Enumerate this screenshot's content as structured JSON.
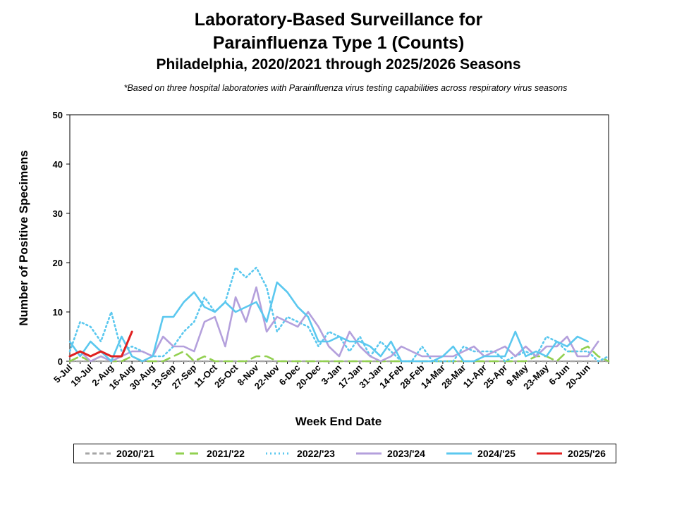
{
  "chart_data": {
    "type": "line",
    "title_line1": "Laboratory-Based Surveillance for",
    "title_line2": "Parainfluenza Type 1 (Counts)",
    "subtitle": "Philadelphia, 2020/2021 through 2025/2026 Seasons",
    "note": "*Based on three hospital laboratories with Parainfluenza virus testing capabilities across respiratory virus seasons",
    "xlabel": "Week End Date",
    "ylabel": "Number of Positive Specimens",
    "ylim": [
      0,
      50
    ],
    "yticks": [
      0,
      10,
      20,
      30,
      40,
      50
    ],
    "grid": false,
    "legend_position": "bottom",
    "x_tick_labels": [
      "5-Jul",
      "19-Jul",
      "2-Aug",
      "16-Aug",
      "30-Aug",
      "13-Sep",
      "27-Sep",
      "11-Oct",
      "25-Oct",
      "8-Nov",
      "22-Nov",
      "6-Dec",
      "20-Dec",
      "3-Jan",
      "17-Jan",
      "31-Jan",
      "14-Feb",
      "28-Feb",
      "14-Mar",
      "28-Mar",
      "11-Apr",
      "25-Apr",
      "9-May",
      "23-May",
      "6-Jun",
      "20-Jun"
    ],
    "series": [
      {
        "name": "2020/'21",
        "color": "#a6a6a6",
        "dash": "dash",
        "values": [
          0,
          0,
          0,
          0,
          0,
          0,
          0,
          0,
          0,
          0,
          0,
          0,
          0,
          0,
          0,
          0,
          0,
          0,
          0,
          0,
          0,
          0,
          0,
          0,
          0,
          0,
          0,
          0,
          0,
          0,
          0,
          0,
          0,
          0,
          0,
          0,
          0,
          0,
          0,
          0,
          0,
          0,
          0,
          0,
          0,
          0,
          0,
          0,
          0,
          0,
          0,
          0,
          0
        ]
      },
      {
        "name": "2021/'22",
        "color": "#92d050",
        "dash": "longdash",
        "values": [
          0,
          1,
          0,
          1,
          0,
          0,
          1,
          0,
          0,
          0,
          1,
          2,
          0,
          1,
          0,
          0,
          0,
          0,
          1,
          1,
          0,
          0,
          0,
          0,
          0,
          0,
          0,
          0,
          0,
          0,
          0,
          0,
          0,
          0,
          0,
          0,
          0,
          0,
          0,
          0,
          0,
          0,
          0,
          0,
          0,
          1,
          1,
          0,
          2,
          2,
          3,
          1,
          0
        ]
      },
      {
        "name": "2022/'23",
        "color": "#5bc8ef",
        "dash": "dot",
        "values": [
          2,
          8,
          7,
          4,
          10,
          2,
          3,
          2,
          1,
          1,
          3,
          6,
          8,
          13,
          10,
          12,
          19,
          17,
          19,
          15,
          6,
          9,
          8,
          7,
          3,
          6,
          5,
          2,
          5,
          1,
          4,
          2,
          0,
          0,
          3,
          0,
          0,
          0,
          3,
          2,
          2,
          2,
          0,
          1,
          2,
          1,
          5,
          4,
          2,
          2,
          2,
          0,
          1
        ]
      },
      {
        "name": "2023/'24",
        "color": "#b4a0dc",
        "dash": "solid",
        "values": [
          1,
          2,
          0,
          1,
          0,
          1,
          2,
          2,
          1,
          5,
          3,
          3,
          2,
          8,
          9,
          3,
          13,
          8,
          15,
          6,
          9,
          8,
          7,
          10,
          7,
          3,
          1,
          6,
          3,
          1,
          0,
          1,
          3,
          2,
          1,
          1,
          1,
          1,
          2,
          3,
          1,
          2,
          3,
          1,
          3,
          1,
          3,
          3,
          5,
          1,
          1,
          4,
          null
        ]
      },
      {
        "name": "2024/'25",
        "color": "#5bc8ef",
        "dash": "solid",
        "values": [
          4,
          1,
          4,
          2,
          0,
          5,
          1,
          0,
          1,
          9,
          9,
          12,
          14,
          11,
          10,
          12,
          10,
          11,
          12,
          8,
          16,
          14,
          11,
          9,
          4,
          4,
          5,
          4,
          4,
          3,
          1,
          4,
          0,
          0,
          0,
          0,
          1,
          3,
          0,
          0,
          1,
          1,
          1,
          6,
          1,
          2,
          1,
          4,
          3,
          5,
          4,
          null,
          null
        ]
      },
      {
        "name": "2025/'26",
        "color": "#e02020",
        "dash": "solid",
        "values": [
          1,
          2,
          1,
          2,
          1,
          1,
          6,
          null,
          null,
          null,
          null,
          null,
          null,
          null,
          null,
          null,
          null,
          null,
          null,
          null,
          null,
          null,
          null,
          null,
          null,
          null,
          null,
          null,
          null,
          null,
          null,
          null,
          null,
          null,
          null,
          null,
          null,
          null,
          null,
          null,
          null,
          null,
          null,
          null,
          null,
          null,
          null,
          null,
          null,
          null,
          null,
          null,
          null
        ]
      }
    ]
  }
}
